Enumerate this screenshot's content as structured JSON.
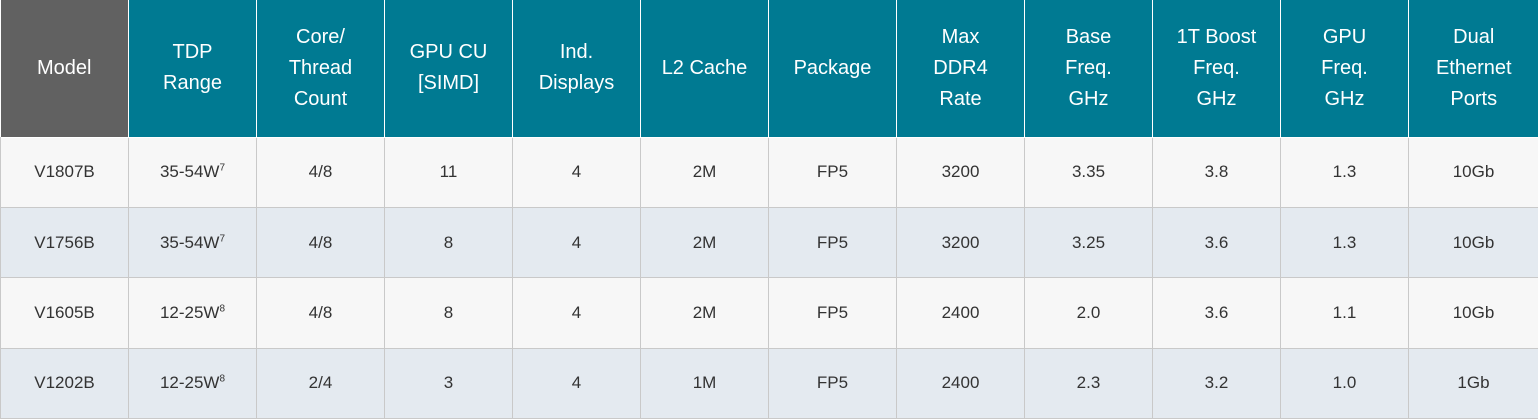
{
  "table": {
    "headers": [
      [
        "Model"
      ],
      [
        "TDP",
        "Range"
      ],
      [
        "Core/",
        "Thread",
        "Count"
      ],
      [
        "GPU CU",
        "[SIMD]"
      ],
      [
        "Ind.",
        "Displays"
      ],
      [
        "L2 Cache"
      ],
      [
        "Package"
      ],
      [
        "Max",
        "DDR4",
        "Rate"
      ],
      [
        "Base",
        "Freq.",
        "GHz"
      ],
      [
        "1T Boost",
        "Freq.",
        "GHz"
      ],
      [
        "GPU",
        "Freq.",
        "GHz"
      ],
      [
        "Dual",
        "Ethernet",
        "Ports"
      ]
    ],
    "rows": [
      {
        "model": "V1807B",
        "tdp": "35-54W",
        "tdp_note": "7",
        "core_thread": "4/8",
        "gpu_cu": "11",
        "displays": "4",
        "l2_cache": "2M",
        "package": "FP5",
        "ddr4_rate": "3200",
        "base_freq": "3.35",
        "boost_freq": "3.8",
        "gpu_freq": "1.3",
        "ethernet": "10Gb"
      },
      {
        "model": "V1756B",
        "tdp": "35-54W",
        "tdp_note": "7",
        "core_thread": "4/8",
        "gpu_cu": "8",
        "displays": "4",
        "l2_cache": "2M",
        "package": "FP5",
        "ddr4_rate": "3200",
        "base_freq": "3.25",
        "boost_freq": "3.6",
        "gpu_freq": "1.3",
        "ethernet": "10Gb"
      },
      {
        "model": "V1605B",
        "tdp": "12-25W",
        "tdp_note": "8",
        "core_thread": "4/8",
        "gpu_cu": "8",
        "displays": "4",
        "l2_cache": "2M",
        "package": "FP5",
        "ddr4_rate": "2400",
        "base_freq": "2.0",
        "boost_freq": "3.6",
        "gpu_freq": "1.1",
        "ethernet": "10Gb"
      },
      {
        "model": "V1202B",
        "tdp": "12-25W",
        "tdp_note": "8",
        "core_thread": "2/4",
        "gpu_cu": "3",
        "displays": "4",
        "l2_cache": "1M",
        "package": "FP5",
        "ddr4_rate": "2400",
        "base_freq": "2.3",
        "boost_freq": "3.2",
        "gpu_freq": "1.0",
        "ethernet": "1Gb"
      }
    ]
  },
  "colors": {
    "header_teal": "#007a92",
    "header_model_gray": "#616161",
    "row_light": "#f7f7f7",
    "row_blue": "#e4eaf0",
    "text": "#333333"
  }
}
